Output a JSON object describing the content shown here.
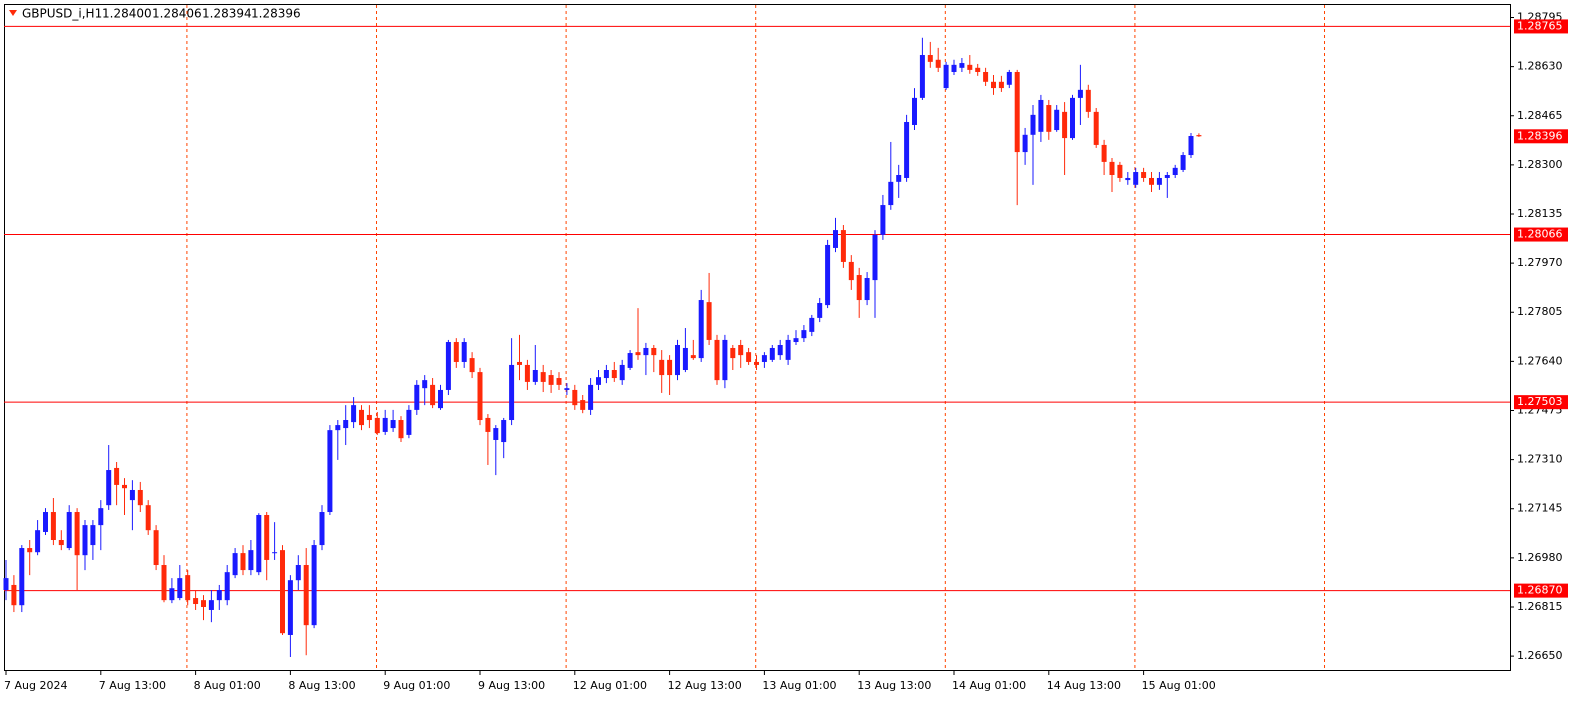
{
  "chart_data": {
    "type": "candlestick",
    "title": "GBPUSD_i,H1",
    "last_bar_labels": [
      "1.28400",
      "1.28406",
      "1.28394",
      "1.28396"
    ],
    "categories": [
      "7 Aug 2024",
      null,
      null,
      null,
      null,
      null,
      null,
      null,
      null,
      null,
      null,
      null,
      "7 Aug 13:00",
      null,
      null,
      null,
      null,
      null,
      null,
      null,
      null,
      null,
      null,
      null,
      "8 Aug 01:00",
      null,
      null,
      null,
      null,
      null,
      null,
      null,
      null,
      null,
      null,
      null,
      "8 Aug 13:00",
      null,
      null,
      null,
      null,
      null,
      null,
      null,
      null,
      null,
      null,
      null,
      "9 Aug 01:00",
      null,
      null,
      null,
      null,
      null,
      null,
      null,
      null,
      null,
      null,
      null,
      "9 Aug 13:00",
      null,
      null,
      null,
      null,
      null,
      null,
      null,
      null,
      null,
      null,
      null,
      "12 Aug 01:00",
      null,
      null,
      null,
      null,
      null,
      null,
      null,
      null,
      null,
      null,
      null,
      "12 Aug 13:00",
      null,
      null,
      null,
      null,
      null,
      null,
      null,
      null,
      null,
      null,
      null,
      "13 Aug 01:00",
      null,
      null,
      null,
      null,
      null,
      null,
      null,
      null,
      null,
      null,
      null,
      "13 Aug 13:00",
      null,
      null,
      null,
      null,
      null,
      null,
      null,
      null,
      null,
      null,
      null,
      "14 Aug 01:00",
      null,
      null,
      null,
      null,
      null,
      null,
      null,
      null,
      null,
      null,
      null,
      "14 Aug 13:00",
      null,
      null,
      null,
      null,
      null,
      null,
      null,
      null,
      null,
      null,
      null,
      "15 Aug 01:00",
      null,
      null,
      null,
      null,
      null,
      null,
      null
    ],
    "candles": [
      [
        1.26872,
        1.26973,
        1.26838,
        1.26912
      ],
      [
        1.26889,
        1.26922,
        1.26798,
        1.26821
      ],
      [
        1.26821,
        1.27023,
        1.26798,
        1.27013
      ],
      [
        1.27013,
        1.2704,
        1.26922,
        1.26999
      ],
      [
        1.26999,
        1.27107,
        1.26989,
        1.27073
      ],
      [
        1.27067,
        1.27147,
        1.27057,
        1.27134
      ],
      [
        1.27134,
        1.27181,
        1.27023,
        1.2704
      ],
      [
        1.2704,
        1.27073,
        1.27006,
        1.27023
      ],
      [
        1.27013,
        1.27157,
        1.27006,
        1.27134
      ],
      [
        1.27134,
        1.27147,
        1.26872,
        1.26989
      ],
      [
        1.26989,
        1.27107,
        1.26939,
        1.2709
      ],
      [
        1.27023,
        1.27107,
        1.26973,
        1.2709
      ],
      [
        1.2709,
        1.27174,
        1.27006,
        1.27147
      ],
      [
        1.27157,
        1.27359,
        1.27141,
        1.27275
      ],
      [
        1.27282,
        1.27302,
        1.27157,
        1.27225
      ],
      [
        1.27225,
        1.27248,
        1.27124,
        1.27214
      ],
      [
        1.27174,
        1.27241,
        1.27073,
        1.27208
      ],
      [
        1.27208,
        1.27235,
        1.27134,
        1.27157
      ],
      [
        1.27157,
        1.27174,
        1.27057,
        1.27073
      ],
      [
        1.27073,
        1.2709,
        1.26939,
        1.26956
      ],
      [
        1.26956,
        1.26989,
        1.26831,
        1.26838
      ],
      [
        1.26838,
        1.26912,
        1.26828,
        1.26878
      ],
      [
        1.26845,
        1.26956,
        1.26838,
        1.26912
      ],
      [
        1.26922,
        1.26939,
        1.26821,
        1.26838
      ],
      [
        1.26845,
        1.26872,
        1.26805,
        1.26825
      ],
      [
        1.26838,
        1.26855,
        1.26771,
        1.26815
      ],
      [
        1.26805,
        1.26872,
        1.26764,
        1.26838
      ],
      [
        1.26838,
        1.26889,
        1.26805,
        1.26872
      ],
      [
        1.26838,
        1.26956,
        1.26821,
        1.26932
      ],
      [
        1.26922,
        1.27013,
        1.26912,
        1.26996
      ],
      [
        1.26996,
        1.27023,
        1.26922,
        1.26939
      ],
      [
        1.26939,
        1.2704,
        1.26922,
        1.27006
      ],
      [
        1.26932,
        1.2713,
        1.26922,
        1.27124
      ],
      [
        1.27124,
        1.27134,
        1.26905,
        1.26973
      ],
      [
        1.26996,
        1.271,
        1.26973,
        1.26999
      ],
      [
        1.27006,
        1.27023,
        1.26721,
        1.26727
      ],
      [
        1.26721,
        1.26922,
        1.26647,
        1.26905
      ],
      [
        1.26905,
        1.26989,
        1.26872,
        1.26956
      ],
      [
        1.26956,
        1.27013,
        1.26653,
        1.26754
      ],
      [
        1.26754,
        1.2704,
        1.26744,
        1.27023
      ],
      [
        1.27023,
        1.27157,
        1.27006,
        1.27134
      ],
      [
        1.27134,
        1.27426,
        1.27124,
        1.27409
      ],
      [
        1.27409,
        1.27443,
        1.27309,
        1.27426
      ],
      [
        1.27416,
        1.27493,
        1.27359,
        1.27443
      ],
      [
        1.27436,
        1.2752,
        1.27416,
        1.27493
      ],
      [
        1.27477,
        1.27493,
        1.27409,
        1.27426
      ],
      [
        1.2746,
        1.27493,
        1.27416,
        1.27443
      ],
      [
        1.2745,
        1.2747,
        1.27393,
        1.27399
      ],
      [
        1.27403,
        1.27477,
        1.27393,
        1.2745
      ],
      [
        1.27416,
        1.27477,
        1.27403,
        1.27443
      ],
      [
        1.27443,
        1.27456,
        1.27369,
        1.27382
      ],
      [
        1.27393,
        1.27493,
        1.27382,
        1.27477
      ],
      [
        1.27477,
        1.27577,
        1.2746,
        1.27561
      ],
      [
        1.2755,
        1.27594,
        1.27493,
        1.27577
      ],
      [
        1.27561,
        1.27584,
        1.27483,
        1.27493
      ],
      [
        1.27483,
        1.27561,
        1.27477,
        1.27544
      ],
      [
        1.27544,
        1.27712,
        1.27527,
        1.27705
      ],
      [
        1.27705,
        1.27718,
        1.27618,
        1.27638
      ],
      [
        1.27638,
        1.27718,
        1.27618,
        1.27705
      ],
      [
        1.27651,
        1.27671,
        1.27584,
        1.27604
      ],
      [
        1.27604,
        1.27618,
        1.27426,
        1.27443
      ],
      [
        1.2745,
        1.27463,
        1.27292,
        1.27403
      ],
      [
        1.27376,
        1.27426,
        1.27258,
        1.27416
      ],
      [
        1.27369,
        1.2745,
        1.27315,
        1.27443
      ],
      [
        1.27443,
        1.27718,
        1.27426,
        1.27628
      ],
      [
        1.27638,
        1.27729,
        1.27577,
        1.27628
      ],
      [
        1.27628,
        1.27645,
        1.27544,
        1.27571
      ],
      [
        1.27571,
        1.27695,
        1.27561,
        1.27611
      ],
      [
        1.27604,
        1.27628,
        1.27537,
        1.27571
      ],
      [
        1.27594,
        1.27611,
        1.27534,
        1.27561
      ],
      [
        1.27584,
        1.27604,
        1.27544,
        1.27561
      ],
      [
        1.27544,
        1.27567,
        1.27527,
        1.2755
      ],
      [
        1.27544,
        1.27561,
        1.27477,
        1.27493
      ],
      [
        1.2751,
        1.27527,
        1.27466,
        1.27477
      ],
      [
        1.27477,
        1.27584,
        1.2746,
        1.27561
      ],
      [
        1.27561,
        1.27611,
        1.27544,
        1.27587
      ],
      [
        1.27584,
        1.27628,
        1.27567,
        1.27611
      ],
      [
        1.27611,
        1.27638,
        1.27571,
        1.27584
      ],
      [
        1.27577,
        1.27645,
        1.27561,
        1.27628
      ],
      [
        1.27618,
        1.27678,
        1.27611,
        1.27668
      ],
      [
        1.27671,
        1.27819,
        1.27645,
        1.27661
      ],
      [
        1.27661,
        1.27702,
        1.27594,
        1.27685
      ],
      [
        1.27685,
        1.27695,
        1.27604,
        1.27661
      ],
      [
        1.27645,
        1.27678,
        1.27534,
        1.27594
      ],
      [
        1.27645,
        1.27661,
        1.27527,
        1.27594
      ],
      [
        1.27594,
        1.27712,
        1.27577,
        1.27695
      ],
      [
        1.27611,
        1.27752,
        1.27604,
        1.27685
      ],
      [
        1.27661,
        1.27712,
        1.27645,
        1.27651
      ],
      [
        1.27651,
        1.2788,
        1.27638,
        1.27846
      ],
      [
        1.27839,
        1.27937,
        1.27695,
        1.27712
      ],
      [
        1.27712,
        1.27729,
        1.27561,
        1.27577
      ],
      [
        1.27577,
        1.27729,
        1.2755,
        1.27712
      ],
      [
        1.27685,
        1.27695,
        1.27611,
        1.27651
      ],
      [
        1.27695,
        1.27712,
        1.27618,
        1.27661
      ],
      [
        1.27671,
        1.27685,
        1.27628,
        1.27638
      ],
      [
        1.27638,
        1.27661,
        1.27611,
        1.27628
      ],
      [
        1.27638,
        1.27671,
        1.27618,
        1.27661
      ],
      [
        1.27645,
        1.27695,
        1.27638,
        1.27685
      ],
      [
        1.27661,
        1.27712,
        1.27645,
        1.27695
      ],
      [
        1.27645,
        1.27729,
        1.27628,
        1.27712
      ],
      [
        1.27705,
        1.27745,
        1.27695,
        1.27718
      ],
      [
        1.27718,
        1.27762,
        1.27705,
        1.27745
      ],
      [
        1.27739,
        1.27796,
        1.27725,
        1.27786
      ],
      [
        1.27786,
        1.27853,
        1.27772,
        1.27836
      ],
      [
        1.27829,
        1.28048,
        1.27819,
        1.28031
      ],
      [
        1.28021,
        1.28122,
        1.28007,
        1.28081
      ],
      [
        1.28081,
        1.28098,
        1.27954,
        1.27974
      ],
      [
        1.27974,
        1.27997,
        1.2788,
        1.27913
      ],
      [
        1.2793,
        1.27954,
        1.27786,
        1.27846
      ],
      [
        1.27846,
        1.2794,
        1.27829,
        1.2792
      ],
      [
        1.27913,
        1.28081,
        1.27786,
        1.28065
      ],
      [
        1.28065,
        1.28199,
        1.28048,
        1.28165
      ],
      [
        1.28165,
        1.28377,
        1.28149,
        1.28243
      ],
      [
        1.28243,
        1.283,
        1.28189,
        1.28266
      ],
      [
        1.28256,
        1.28468,
        1.28243,
        1.28444
      ],
      [
        1.28434,
        1.28558,
        1.28417,
        1.28525
      ],
      [
        1.28525,
        1.28727,
        1.28518,
        1.28669
      ],
      [
        1.28669,
        1.28713,
        1.28626,
        1.28646
      ],
      [
        1.28653,
        1.28693,
        1.28612,
        1.28626
      ],
      [
        1.28558,
        1.28646,
        1.28552,
        1.28636
      ],
      [
        1.28612,
        1.28653,
        1.28602,
        1.28636
      ],
      [
        1.28626,
        1.28659,
        1.28612,
        1.28642
      ],
      [
        1.28636,
        1.28669,
        1.28606,
        1.28619
      ],
      [
        1.28626,
        1.28639,
        1.28599,
        1.28612
      ],
      [
        1.28612,
        1.28626,
        1.28565,
        1.28579
      ],
      [
        1.28579,
        1.28602,
        1.28535,
        1.28558
      ],
      [
        1.28579,
        1.28599,
        1.28545,
        1.28558
      ],
      [
        1.28569,
        1.28619,
        1.28558,
        1.28612
      ],
      [
        1.28612,
        1.28619,
        1.28165,
        1.28343
      ],
      [
        1.28343,
        1.28424,
        1.283,
        1.28401
      ],
      [
        1.28401,
        1.28501,
        1.28233,
        1.28468
      ],
      [
        1.28411,
        1.28535,
        1.28377,
        1.28518
      ],
      [
        1.28501,
        1.28518,
        1.28384,
        1.28411
      ],
      [
        1.28417,
        1.28501,
        1.28411,
        1.28485
      ],
      [
        1.28478,
        1.28511,
        1.28266,
        1.2839
      ],
      [
        1.2839,
        1.28535,
        1.28384,
        1.28525
      ],
      [
        1.28525,
        1.28636,
        1.28434,
        1.28552
      ],
      [
        1.28552,
        1.28569,
        1.28458,
        1.28478
      ],
      [
        1.28478,
        1.28491,
        1.28357,
        1.28367
      ],
      [
        1.28367,
        1.28384,
        1.28266,
        1.2831
      ],
      [
        1.2831,
        1.28323,
        1.28209,
        1.28266
      ],
      [
        1.283,
        1.2831,
        1.28243,
        1.28256
      ],
      [
        1.28249,
        1.28276,
        1.28233,
        1.28256
      ],
      [
        1.28233,
        1.2829,
        1.28223,
        1.28276
      ],
      [
        1.28276,
        1.2829,
        1.28243,
        1.28256
      ],
      [
        1.28256,
        1.28276,
        1.28209,
        1.28233
      ],
      [
        1.28233,
        1.28276,
        1.28216,
        1.28256
      ],
      [
        1.28256,
        1.28276,
        1.28189,
        1.28266
      ],
      [
        1.28266,
        1.283,
        1.28256,
        1.2829
      ],
      [
        1.28283,
        1.28343,
        1.28276,
        1.28333
      ],
      [
        1.28333,
        1.28407,
        1.28323,
        1.28397
      ],
      [
        1.284,
        1.28406,
        1.28394,
        1.28396
      ]
    ],
    "up_color": "#1a1aff",
    "down_color": "#ff2a0a",
    "ylim": [
      1.266,
      1.28837
    ],
    "yticks": [
      1.28795,
      {
        "value": 1.2863,
        "label": "1.28630"
      },
      1.28465,
      {
        "value": 1.283,
        "label": "1.28300"
      },
      1.28135,
      {
        "value": 1.2797,
        "label": "1.27970"
      },
      1.27805,
      {
        "value": 1.2764,
        "label": "1.27640"
      },
      1.27475,
      {
        "value": 1.2731,
        "label": "1.27310"
      },
      1.27145,
      {
        "value": 1.2698,
        "label": "1.26980"
      },
      1.26815,
      {
        "value": 1.2665,
        "label": "1.26650"
      }
    ],
    "hlines": [
      1.28765,
      1.28066,
      1.27503,
      {
        "value": 1.2687,
        "label": "1.26870"
      }
    ],
    "hline_color": "#ff0000",
    "grid": false
  }
}
